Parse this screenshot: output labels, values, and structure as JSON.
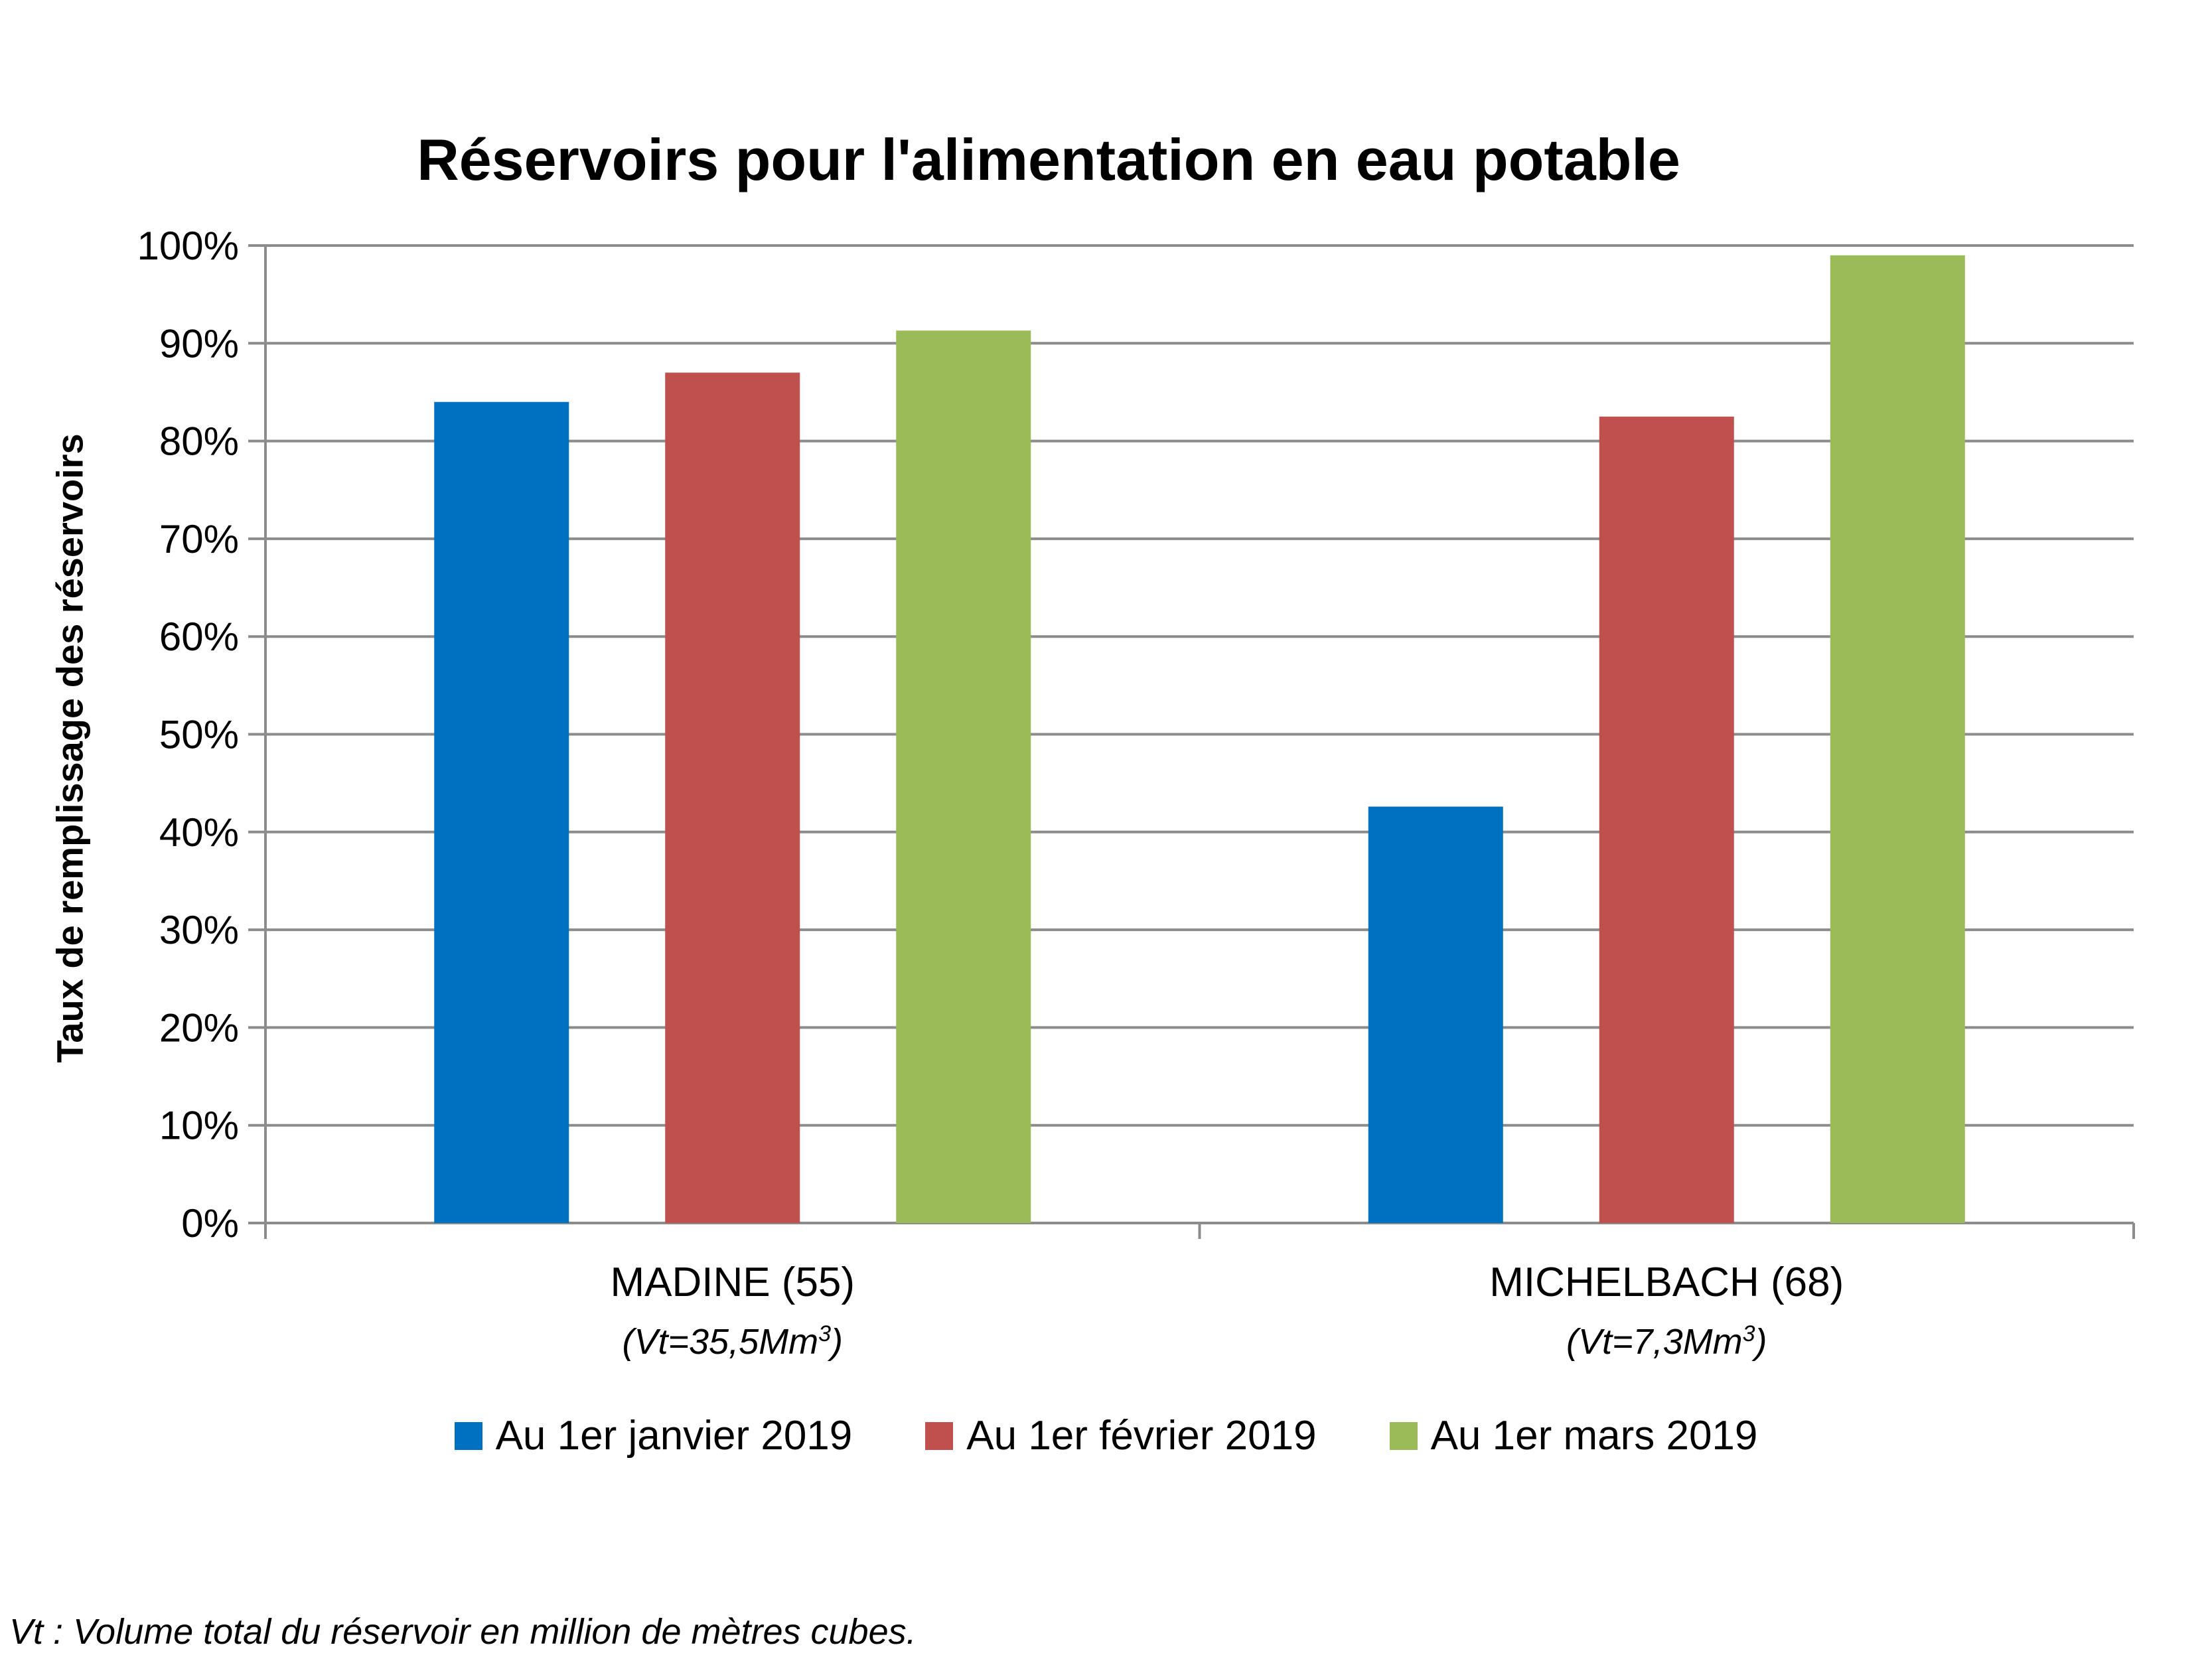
{
  "chart_data": {
    "type": "bar",
    "title": "Réservoirs pour l'alimentation en eau potable",
    "ylabel": "Taux de remplissage des réservoirs",
    "xlabel": "",
    "ylim": [
      0,
      100
    ],
    "y_ticks": [
      "0%",
      "10%",
      "20%",
      "30%",
      "40%",
      "50%",
      "60%",
      "70%",
      "80%",
      "90%",
      "100%"
    ],
    "grid": true,
    "legend_position": "bottom",
    "categories": [
      "MADINE (55)",
      "MICHELBACH (68)"
    ],
    "category_notes": [
      {
        "text": "(Vt=35,5Mm",
        "sup": "3",
        "tail": ")"
      },
      {
        "text": "(Vt=7,3Mm",
        "sup": "3",
        "tail": ")"
      }
    ],
    "series": [
      {
        "name": "Au 1er janvier 2019",
        "color": "#0070C0",
        "values": [
          84,
          42.6
        ]
      },
      {
        "name": "Au 1er février 2019",
        "color": "#C0504D",
        "values": [
          87,
          82.5
        ]
      },
      {
        "name": "Au 1er mars 2019",
        "color": "#9BBB59",
        "values": [
          91.3,
          99
        ]
      }
    ]
  },
  "footnote": "Vt : Volume total du réservoir en million de mètres cubes."
}
